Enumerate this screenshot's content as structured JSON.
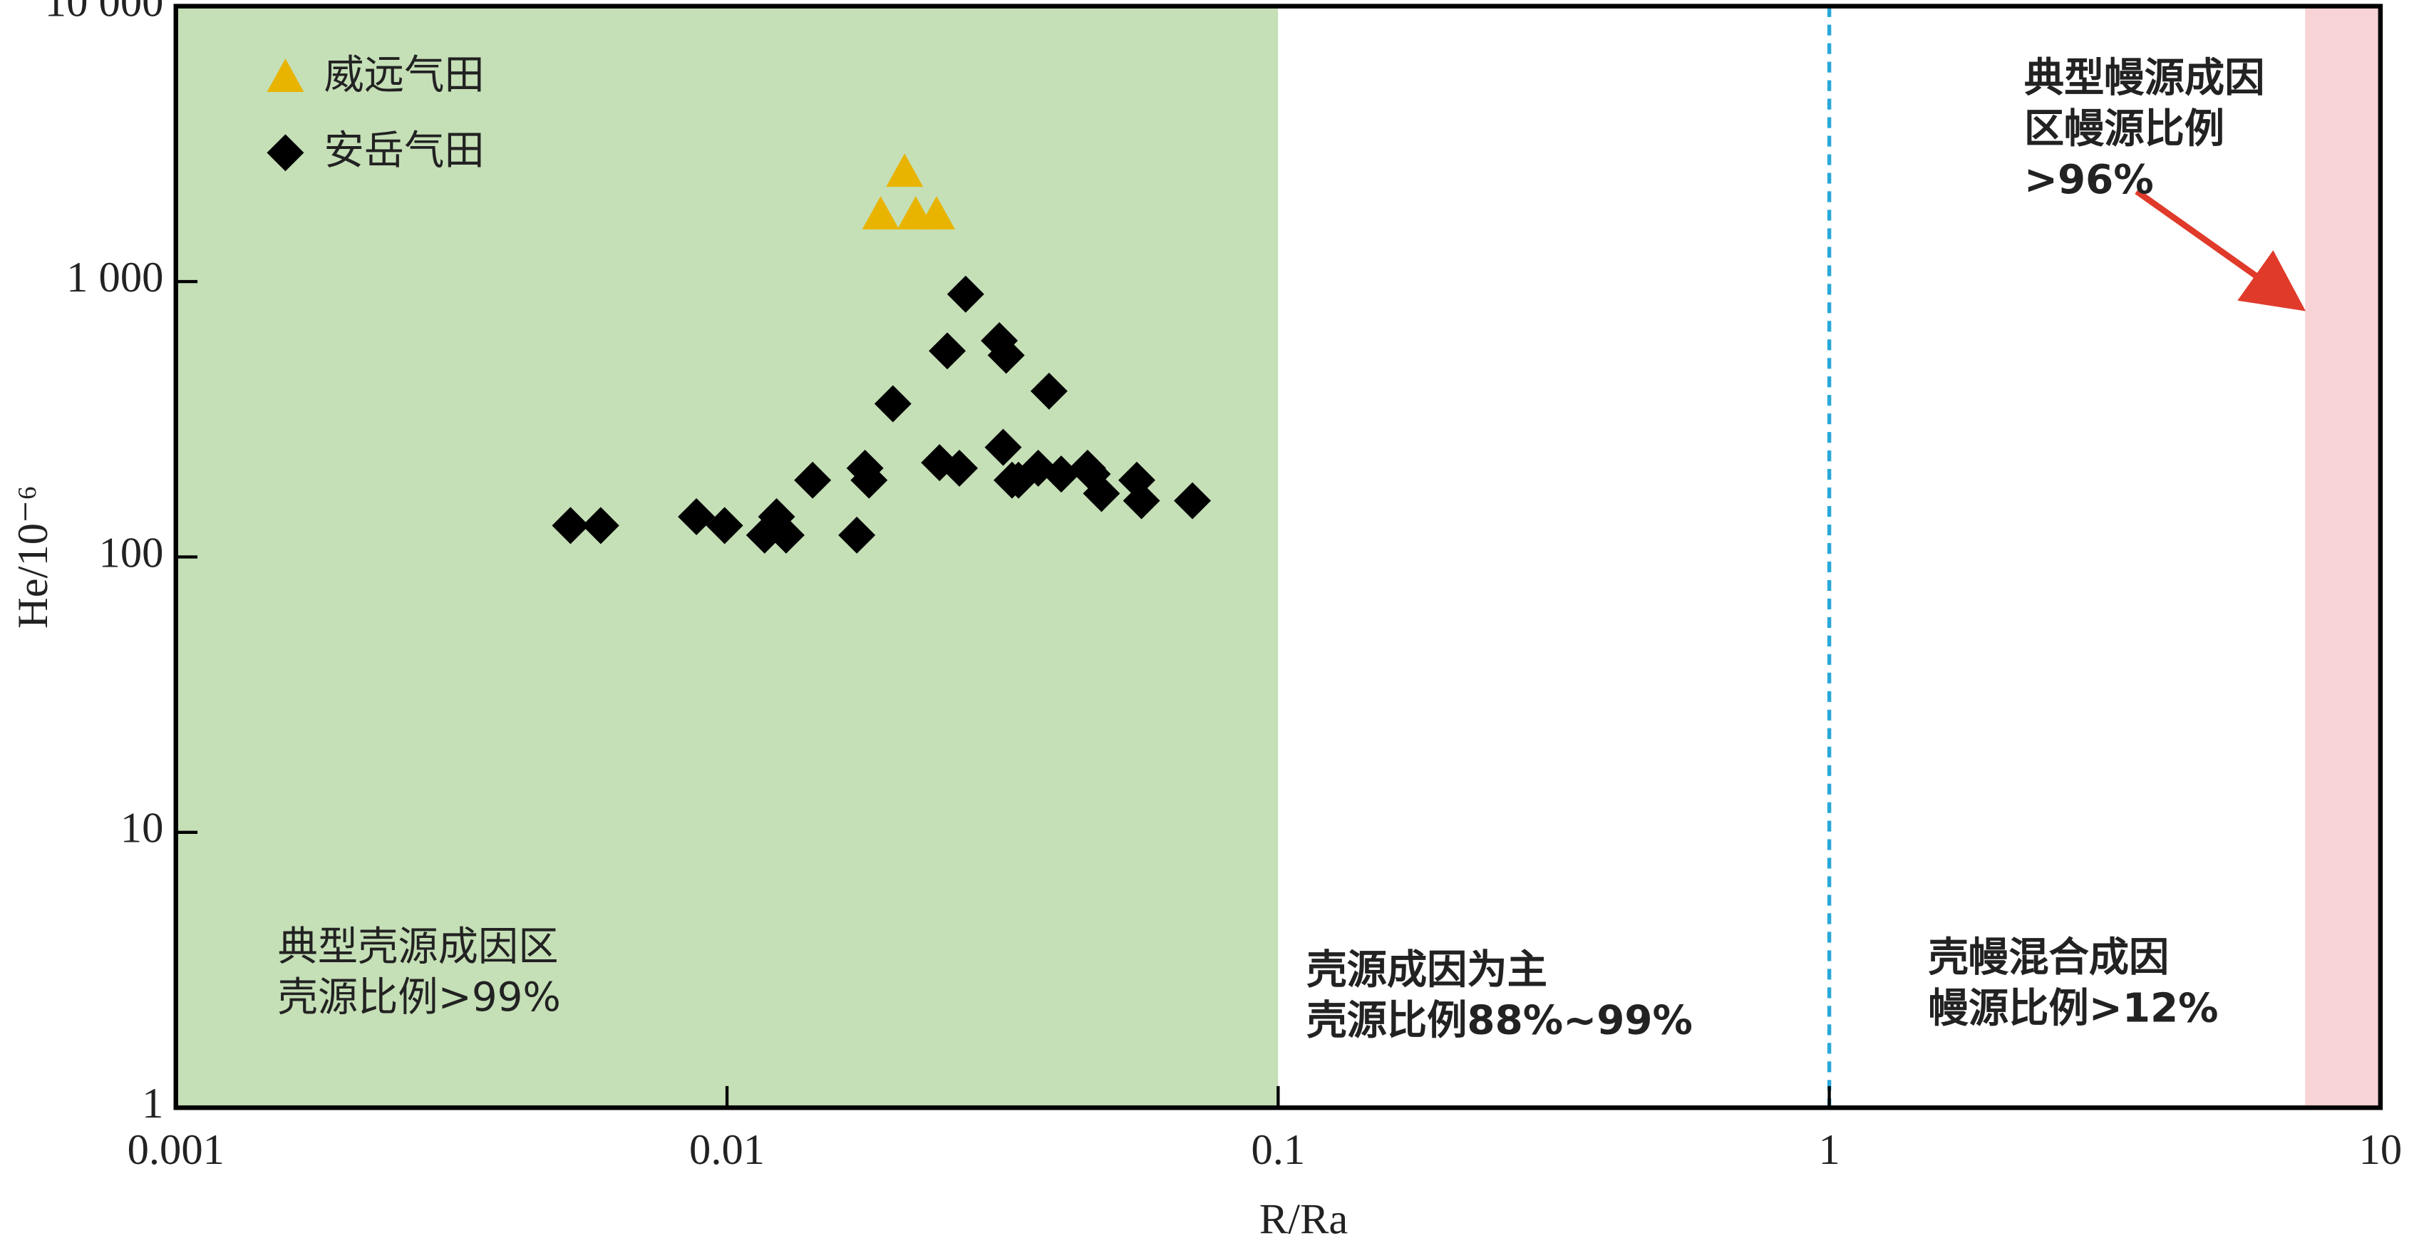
{
  "chart_data": {
    "type": "scatter",
    "x_label": "R/Ra",
    "y_label": "He/10⁻⁶",
    "xscale": "log",
    "yscale": "log",
    "xlim": [
      0.001,
      10
    ],
    "ylim": [
      1,
      10000
    ],
    "xticks": [
      0.001,
      0.01,
      0.1,
      1,
      10
    ],
    "yticks": [
      {
        "value": 10000,
        "label": "10 000"
      },
      {
        "value": 1000,
        "label": "1 000"
      },
      100,
      10,
      1
    ],
    "regions": [
      {
        "x": [
          0.001,
          0.1
        ],
        "color": "#c5dfb7",
        "lines": [
          "典型壳源成因区",
          "壳源比例>99%"
        ]
      },
      {
        "x": [
          0.1,
          1
        ],
        "color": "#ffffff",
        "lines": [
          "壳源成因为主",
          "壳源比例88%~99%"
        ]
      },
      {
        "x": [
          1,
          7.3
        ],
        "color": "#ffffff",
        "lines": [
          "壳幔混合成因",
          "幔源比例>12%"
        ]
      },
      {
        "x": [
          7.3,
          10
        ],
        "color": "#f8d3d5",
        "lines": [
          "典型幔源成因",
          "区幔源比例",
          ">96%"
        ]
      }
    ],
    "reference_line": {
      "x": 1,
      "color": "#29a8d8"
    },
    "series": [
      {
        "name": "威远气田",
        "color": "#e8b400",
        "marker": "triangle",
        "x": [
          0.021,
          0.019,
          0.022,
          0.024
        ],
        "values": [
          2500,
          1750,
          1750,
          1750
        ]
      },
      {
        "name": "安岳气田",
        "color": "#000000",
        "marker": "diamond",
        "x": [
          0.0052,
          0.0059,
          0.0088,
          0.0099,
          0.0117,
          0.0123,
          0.0128,
          0.0143,
          0.0172,
          0.0178,
          0.0181,
          0.02,
          0.0243,
          0.0251,
          0.0264,
          0.0271,
          0.0312,
          0.0317,
          0.0321,
          0.0329,
          0.0338,
          0.0367,
          0.0384,
          0.0404,
          0.0451,
          0.046,
          0.0478,
          0.0554,
          0.0565,
          0.0699
        ],
        "values": [
          130,
          130,
          140,
          130,
          120,
          140,
          120,
          190,
          120,
          210,
          190,
          360,
          220,
          560,
          210,
          900,
          610,
          250,
          540,
          190,
          190,
          210,
          400,
          200,
          210,
          200,
          170,
          190,
          160,
          160
        ]
      }
    ]
  }
}
